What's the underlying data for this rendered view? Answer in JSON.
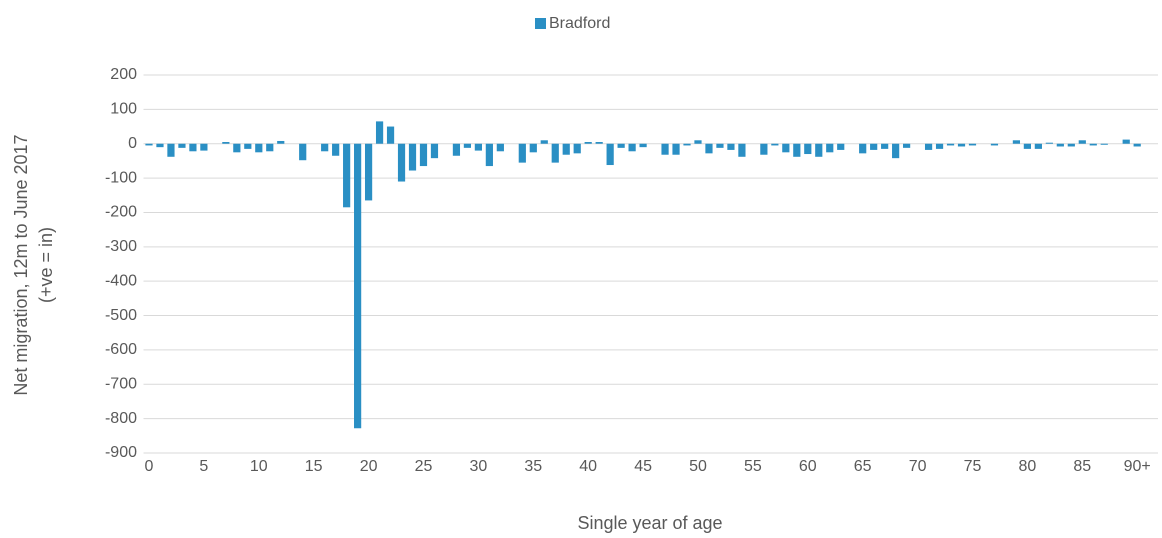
{
  "chart_data": {
    "type": "bar",
    "legend": [
      "Bradford"
    ],
    "series": [
      {
        "name": "Bradford",
        "color": "#2a8fc4",
        "values": [
          -5,
          -10,
          -38,
          -12,
          -22,
          -20,
          0,
          5,
          -25,
          -15,
          -25,
          -22,
          8,
          0,
          -48,
          0,
          -22,
          -35,
          -185,
          -828,
          -165,
          65,
          50,
          -110,
          -78,
          -65,
          -42,
          0,
          -35,
          -12,
          -20,
          -65,
          -22,
          0,
          -55,
          -25,
          10,
          -55,
          -32,
          -28,
          5,
          5,
          -62,
          -12,
          -22,
          -10,
          0,
          -32,
          -32,
          -5,
          10,
          -28,
          -12,
          -18,
          -38,
          0,
          -32,
          -5,
          -25,
          -38,
          -30,
          -38,
          -25,
          -18,
          0,
          -28,
          -18,
          -15,
          -42,
          -12,
          0,
          -18,
          -15,
          -5,
          -8,
          -5,
          0,
          -5,
          0,
          10,
          -15,
          -15,
          3,
          -8,
          -8,
          10,
          -5,
          -3,
          0,
          12,
          -8
        ]
      }
    ],
    "categories": [
      "0",
      null,
      null,
      null,
      null,
      "5",
      null,
      null,
      null,
      null,
      "10",
      null,
      null,
      null,
      null,
      "15",
      null,
      null,
      null,
      null,
      "20",
      null,
      null,
      null,
      null,
      "25",
      null,
      null,
      null,
      null,
      "30",
      null,
      null,
      null,
      null,
      "35",
      null,
      null,
      null,
      null,
      "40",
      null,
      null,
      null,
      null,
      "45",
      null,
      null,
      null,
      null,
      "50",
      null,
      null,
      null,
      null,
      "55",
      null,
      null,
      null,
      null,
      "60",
      null,
      null,
      null,
      null,
      "65",
      null,
      null,
      null,
      null,
      "70",
      null,
      null,
      null,
      null,
      "75",
      null,
      null,
      null,
      null,
      "80",
      null,
      null,
      null,
      null,
      "85",
      null,
      null,
      null,
      null,
      "90+"
    ],
    "xlabel": "Single year of age",
    "ylabel": [
      "Net migration, 12m to June 2017",
      "(+ve = in)"
    ],
    "ylim": [
      -900,
      200
    ],
    "yticks": [
      200,
      100,
      0,
      -100,
      -200,
      -300,
      -400,
      -500,
      -600,
      -700,
      -800,
      -900
    ],
    "grid": true,
    "legend_position": "top"
  }
}
